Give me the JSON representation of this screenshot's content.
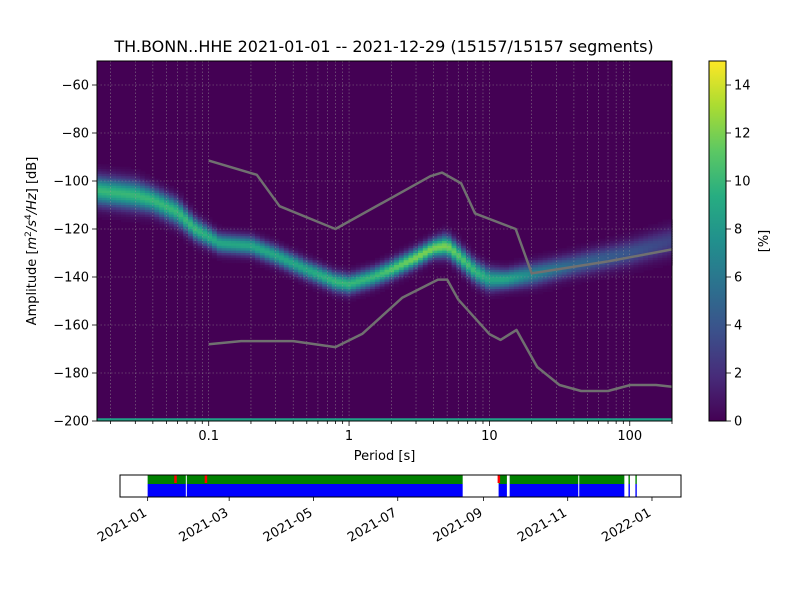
{
  "title": "TH.BONN..HHE   2021-01-01 -- 2021-12-29  (15157/15157 segments)",
  "chart_data": [
    {
      "type": "heatmap",
      "name": "probabilistic-psd",
      "title": "TH.BONN..HHE   2021-01-01 -- 2021-12-29  (15157/15157 segments)",
      "xlabel": "Period [s]",
      "ylabel_parts": [
        "Amplitude [",
        "m",
        "2",
        "/s",
        "4",
        "/Hz",
        "] [dB]"
      ],
      "x_scale": "log",
      "xlim": [
        0.016,
        200
      ],
      "ylim": [
        -200,
        -50
      ],
      "x_ticks": [
        0.1,
        1,
        10,
        100
      ],
      "x_tick_labels": [
        "0.1",
        "1",
        "10",
        "100"
      ],
      "y_ticks": [
        -60,
        -80,
        -100,
        -120,
        -140,
        -160,
        -180,
        -200
      ],
      "y_tick_labels": [
        "−60",
        "−80",
        "−100",
        "−120",
        "−140",
        "−160",
        "−180",
        "−200"
      ],
      "grid": true,
      "colorbar": {
        "label": "[%]",
        "range": [
          0,
          15
        ],
        "ticks": [
          0,
          2,
          4,
          6,
          8,
          10,
          12,
          14
        ],
        "tick_labels": [
          "0",
          "2",
          "4",
          "6",
          "8",
          "10",
          "12",
          "14"
        ],
        "colormap": "viridis"
      },
      "density_ridge": {
        "period": [
          0.016,
          0.03,
          0.04,
          0.06,
          0.08,
          0.12,
          0.2,
          0.3,
          0.5,
          0.8,
          1.0,
          1.5,
          2.0,
          3.0,
          4.0,
          5.0,
          6.0,
          8.0,
          10.0,
          13.0,
          20.0,
          40.0,
          100.0,
          200.0
        ],
        "amplitude_db": [
          -104,
          -106,
          -108,
          -113,
          -120,
          -126,
          -127,
          -131,
          -137,
          -142,
          -143,
          -140,
          -137,
          -132,
          -128,
          -127,
          -131,
          -138,
          -141,
          -141,
          -139,
          -135,
          -130,
          -125
        ],
        "peak_percent": [
          10,
          10,
          10,
          10,
          10,
          9,
          9,
          9,
          9,
          10,
          10,
          10,
          11,
          12,
          12,
          12,
          11,
          10,
          9,
          9,
          7,
          5,
          4,
          3
        ],
        "spread_db": [
          9,
          9,
          8,
          8,
          7,
          6,
          6,
          6,
          6,
          6,
          6,
          6,
          6,
          6,
          6,
          7,
          7,
          7,
          7,
          6,
          7,
          7,
          8,
          9
        ]
      },
      "series": [
        {
          "role": "noise-model-high",
          "color": "#707070",
          "x": [
            0.1,
            0.22,
            0.32,
            0.8,
            3.8,
            4.6,
            6.3,
            7.9,
            15.4,
            20,
            70,
            200
          ],
          "y": [
            -91.5,
            -97.4,
            -110.5,
            -120,
            -98,
            -96.5,
            -101,
            -113.5,
            -120,
            -138.5,
            -133.5,
            -128.5
          ]
        },
        {
          "role": "noise-model-low",
          "color": "#707070",
          "x": [
            0.1,
            0.17,
            0.4,
            0.8,
            1.24,
            2.4,
            4.3,
            5.0,
            6.0,
            10,
            12,
            15.6,
            21.9,
            31.6,
            45,
            70,
            101,
            154,
            200
          ],
          "y": [
            -168,
            -166.7,
            -166.7,
            -169.2,
            -163.7,
            -148.6,
            -141.1,
            -141.1,
            -149.4,
            -163.8,
            -166.2,
            -162.1,
            -177.5,
            -185,
            -187.5,
            -187.5,
            -185,
            -185,
            -185.7
          ]
        }
      ]
    },
    {
      "type": "timeline",
      "name": "data-availability",
      "date_range": [
        "2020-12-12",
        "2022-01-22"
      ],
      "x_tick_labels": [
        {
          "date": "2021-01-01",
          "label": "2021-01"
        },
        {
          "date": "2021-03-01",
          "label": "2021-03"
        },
        {
          "date": "2021-05-01",
          "label": "2021-05"
        },
        {
          "date": "2021-07-01",
          "label": "2021-07"
        },
        {
          "date": "2021-09-01",
          "label": "2021-09"
        },
        {
          "date": "2021-11-01",
          "label": "2021-11"
        },
        {
          "date": "2022-01-01",
          "label": "2022-01"
        }
      ],
      "colors": {
        "data": "#0000ff",
        "psd": "#008000",
        "gap": "#ff0000",
        "divider": "#ffffff"
      },
      "spans": [
        {
          "start": "2021-01-01",
          "end": "2021-08-17"
        },
        {
          "start": "2021-09-12",
          "end": "2021-09-18"
        },
        {
          "start": "2021-09-20",
          "end": "2021-12-12"
        },
        {
          "start": "2021-12-15",
          "end": "2021-12-16"
        },
        {
          "start": "2021-12-20",
          "end": "2021-12-21"
        }
      ],
      "dividers": [
        "2021-01-29",
        "2021-11-09"
      ],
      "gap_marks": [
        "2021-01-21",
        "2021-02-12",
        "2021-09-12"
      ]
    }
  ]
}
